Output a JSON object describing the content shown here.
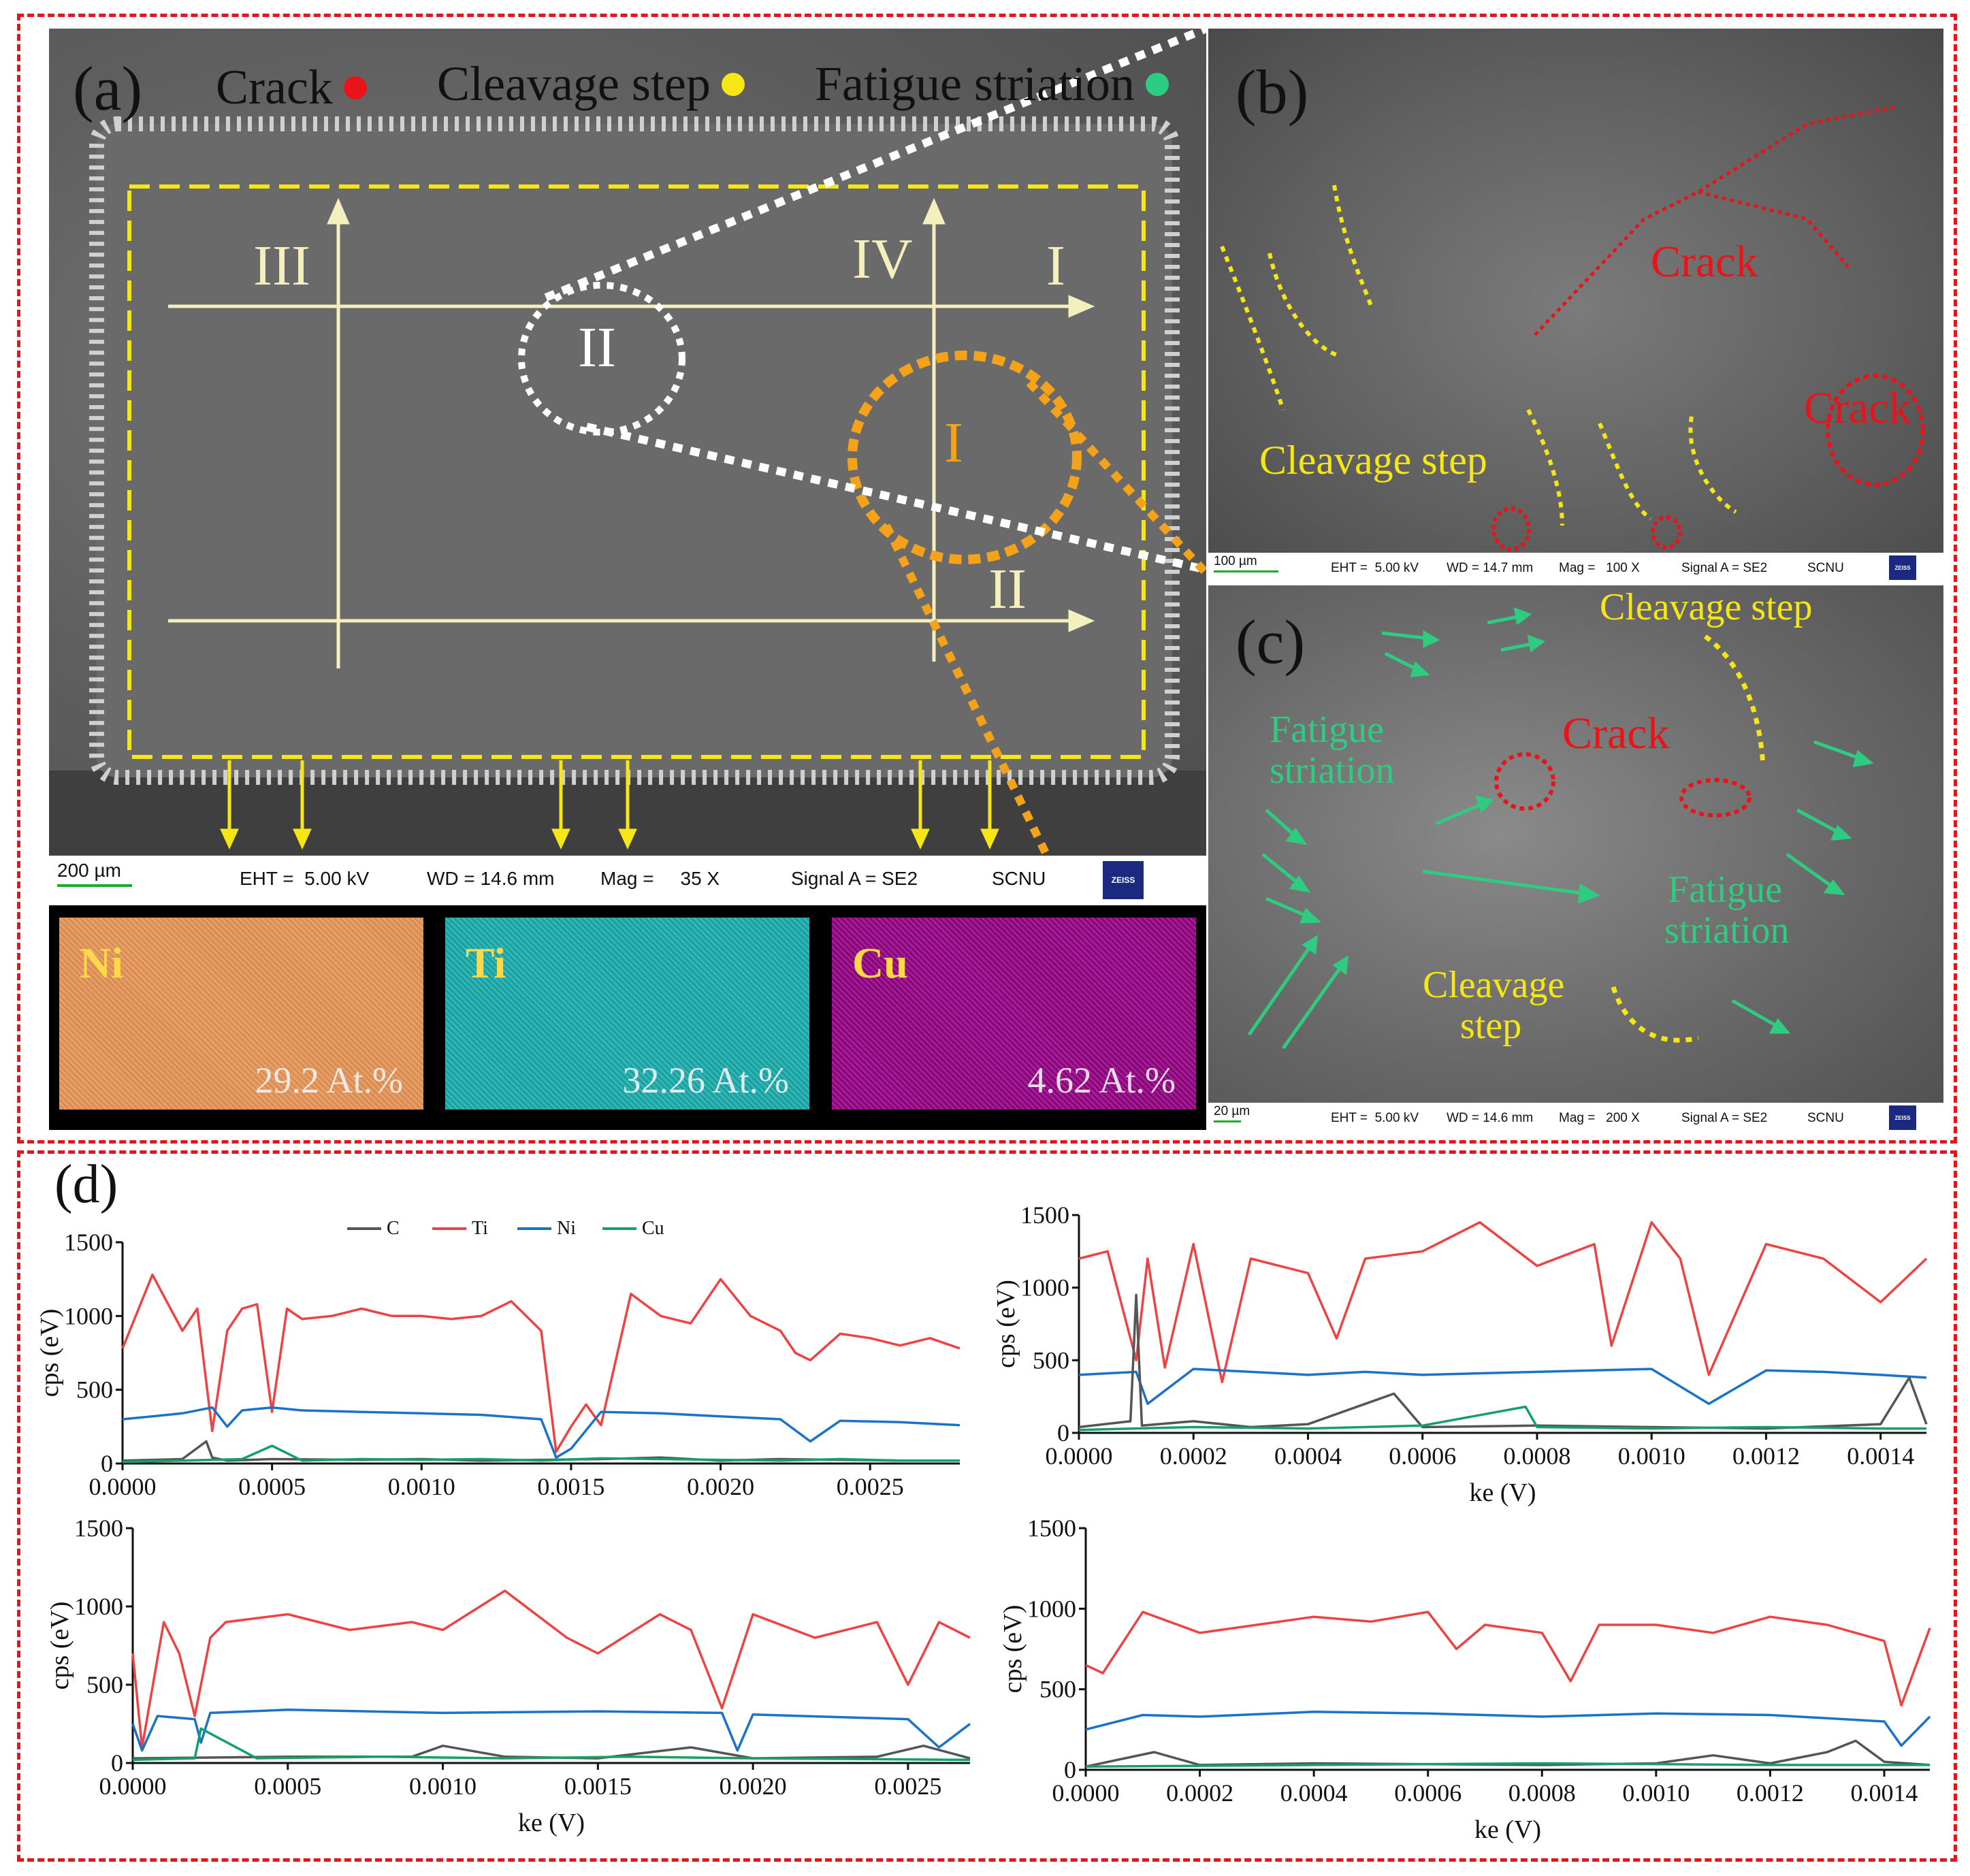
{
  "panel_a": {
    "letter": "(a)",
    "legend": [
      {
        "label": "Crack",
        "color": "#e8141a"
      },
      {
        "label": "Cleavage step",
        "color": "#f5e614"
      },
      {
        "label": "Fatigue striation",
        "color": "#2ecc80"
      }
    ],
    "region_labels": [
      "III",
      "IV",
      "I",
      "II",
      "II",
      "I"
    ],
    "scale_bar": "200 µm",
    "info": {
      "eht": "EHT =  5.00 kV",
      "wd": "WD = 14.6 mm",
      "mag": "Mag =     35 X",
      "signal": "Signal A = SE2",
      "lab": "SCNU",
      "brand": "ZEISS"
    },
    "eds_maps": [
      {
        "element": "Ni",
        "value": "29.2 At.%",
        "color": "#e8a066"
      },
      {
        "element": "Ti",
        "value": "32.26 At.%",
        "color": "#2fb8b8"
      },
      {
        "element": "Cu",
        "value": "4.62 At.%",
        "color": "#b0169e"
      }
    ]
  },
  "panel_b": {
    "letter": "(b)",
    "labels": {
      "crack1": "Crack",
      "crack2": "Crack",
      "cleavage": "Cleavage step"
    },
    "scale_bar": "100 µm",
    "info": {
      "eht": "EHT =  5.00 kV",
      "wd": "WD = 14.7 mm",
      "mag": "Mag =   100 X",
      "signal": "Signal A = SE2",
      "lab": "SCNU",
      "brand": "ZEISS"
    }
  },
  "panel_c": {
    "letter": "(c)",
    "labels": {
      "cleavage_top": "Cleavage step",
      "crack": "Crack",
      "fatigue_left_1": "Fatigue",
      "fatigue_left_2": "striation",
      "fatigue_right_1": "Fatigue",
      "fatigue_right_2": "striation",
      "cleavage_bottom_1": "Cleavage",
      "cleavage_bottom_2": "step"
    },
    "scale_bar": "20 µm",
    "info": {
      "eht": "EHT =  5.00 kV",
      "wd": "WD = 14.6 mm",
      "mag": "Mag =   200 X",
      "signal": "Signal A = SE2",
      "lab": "SCNU",
      "brand": "ZEISS"
    }
  },
  "panel_d": {
    "letter": "(d)"
  },
  "colors": {
    "frame": "#e0181c",
    "Ti": "#ee4343",
    "Ni": "#1a72c9",
    "C": "#555555",
    "Cu": "#16a067"
  },
  "chart_data": [
    {
      "type": "line",
      "xlabel": "",
      "ylabel": "cps (eV)",
      "xlim": [
        0,
        0.0028
      ],
      "ylim": [
        0,
        1500
      ],
      "xticks": [
        "0.0000",
        "0.0005",
        "0.0010",
        "0.0015",
        "0.0020",
        "0.0025"
      ],
      "xtick_values": [
        0,
        0.0005,
        0.001,
        0.0015,
        0.002,
        0.0025
      ],
      "yticks": [
        "0",
        "500",
        "1000",
        "1500"
      ],
      "ytick_values": [
        0,
        500,
        1000,
        1500
      ],
      "legend": [
        "C",
        "Ti",
        "Ni",
        "Cu"
      ],
      "series": [
        {
          "name": "Ti",
          "x": [
            0,
            0.0001,
            0.0002,
            0.00025,
            0.0003,
            0.00035,
            0.0004,
            0.00045,
            0.0005,
            0.00055,
            0.0006,
            0.0007,
            0.0008,
            0.0009,
            0.001,
            0.0011,
            0.0012,
            0.0013,
            0.0014,
            0.00145,
            0.0015,
            0.00155,
            0.0016,
            0.0017,
            0.0018,
            0.0019,
            0.002,
            0.0021,
            0.0022,
            0.00225,
            0.0023,
            0.0024,
            0.0025,
            0.0026,
            0.0027,
            0.0028
          ],
          "y": [
            780,
            1280,
            900,
            1050,
            220,
            900,
            1050,
            1080,
            350,
            1050,
            980,
            1000,
            1050,
            1000,
            1000,
            980,
            1000,
            1100,
            900,
            80,
            250,
            400,
            260,
            1150,
            1000,
            950,
            1250,
            1000,
            900,
            750,
            700,
            880,
            850,
            800,
            850,
            780
          ]
        },
        {
          "name": "Ni",
          "x": [
            0,
            0.0001,
            0.0002,
            0.0003,
            0.00035,
            0.0004,
            0.0005,
            0.0006,
            0.0008,
            0.001,
            0.0012,
            0.0014,
            0.00145,
            0.0015,
            0.0016,
            0.0018,
            0.002,
            0.0022,
            0.0023,
            0.0024,
            0.0026,
            0.0028
          ],
          "y": [
            300,
            320,
            340,
            380,
            250,
            360,
            380,
            360,
            350,
            340,
            330,
            300,
            40,
            100,
            350,
            340,
            320,
            300,
            150,
            290,
            280,
            260
          ]
        },
        {
          "name": "C",
          "x": [
            0,
            0.0002,
            0.00028,
            0.0003,
            0.00035,
            0.0005,
            0.0008,
            0.001,
            0.0012,
            0.0014,
            0.0016,
            0.0018,
            0.002,
            0.0022,
            0.0024,
            0.0026,
            0.0028
          ],
          "y": [
            20,
            30,
            150,
            40,
            20,
            30,
            25,
            30,
            20,
            25,
            30,
            40,
            20,
            30,
            25,
            20,
            20
          ]
        },
        {
          "name": "Cu",
          "x": [
            0,
            0.0002,
            0.0004,
            0.0005,
            0.0006,
            0.0008,
            0.001,
            0.0012,
            0.0014,
            0.0016,
            0.0018,
            0.002,
            0.0022,
            0.0024,
            0.0026,
            0.0028
          ],
          "y": [
            10,
            20,
            30,
            120,
            20,
            30,
            25,
            30,
            20,
            35,
            30,
            25,
            20,
            30,
            20,
            20
          ]
        }
      ]
    },
    {
      "type": "line",
      "xlabel": "ke (V)",
      "ylabel": "cps (eV)",
      "xlim": [
        0,
        0.00148
      ],
      "ylim": [
        0,
        1500
      ],
      "xticks": [
        "0.0000",
        "0.0002",
        "0.0004",
        "0.0006",
        "0.0008",
        "0.0010",
        "0.0012",
        "0.0014"
      ],
      "xtick_values": [
        0,
        0.0002,
        0.0004,
        0.0006,
        0.0008,
        0.001,
        0.0012,
        0.0014
      ],
      "yticks": [
        "0",
        "500",
        "1000",
        "1500"
      ],
      "ytick_values": [
        0,
        500,
        1000,
        1500
      ],
      "series": [
        {
          "name": "Ti",
          "x": [
            0,
            5e-05,
            0.0001,
            0.00012,
            0.00015,
            0.0002,
            0.00025,
            0.0003,
            0.0004,
            0.00045,
            0.0005,
            0.0006,
            0.0007,
            0.0008,
            0.0009,
            0.00093,
            0.001,
            0.00105,
            0.0011,
            0.0012,
            0.0013,
            0.0014,
            0.00148
          ],
          "y": [
            1200,
            1250,
            500,
            1200,
            450,
            1300,
            350,
            1200,
            1100,
            650,
            1200,
            1250,
            1450,
            1150,
            1300,
            600,
            1450,
            1200,
            400,
            1300,
            1200,
            900,
            1200
          ]
        },
        {
          "name": "Ni",
          "x": [
            0,
            0.0001,
            0.00012,
            0.0002,
            0.0003,
            0.0004,
            0.0005,
            0.0006,
            0.0008,
            0.001,
            0.0011,
            0.0012,
            0.0013,
            0.0014,
            0.00148
          ],
          "y": [
            400,
            420,
            200,
            440,
            420,
            400,
            420,
            400,
            420,
            440,
            200,
            430,
            420,
            400,
            380
          ]
        },
        {
          "name": "C",
          "x": [
            0,
            9e-05,
            0.0001,
            0.00011,
            0.0002,
            0.0003,
            0.0004,
            0.00055,
            0.0006,
            0.0008,
            0.001,
            0.0012,
            0.0014,
            0.00145,
            0.00148
          ],
          "y": [
            40,
            80,
            950,
            50,
            80,
            40,
            60,
            270,
            40,
            50,
            40,
            30,
            60,
            380,
            60
          ]
        },
        {
          "name": "Cu",
          "x": [
            0,
            0.0002,
            0.0004,
            0.0006,
            0.00078,
            0.0008,
            0.001,
            0.0012,
            0.0014,
            0.00148
          ],
          "y": [
            20,
            40,
            30,
            50,
            180,
            40,
            30,
            40,
            30,
            30
          ]
        }
      ]
    },
    {
      "type": "line",
      "xlabel": "ke (V)",
      "ylabel": "cps (eV)",
      "xlim": [
        0,
        0.0027
      ],
      "ylim": [
        0,
        1500
      ],
      "xticks": [
        "0.0000",
        "0.0005",
        "0.0010",
        "0.0015",
        "0.0020",
        "0.0025"
      ],
      "xtick_values": [
        0,
        0.0005,
        0.001,
        0.0015,
        0.002,
        0.0025
      ],
      "yticks": [
        "0",
        "500",
        "1000",
        "1500"
      ],
      "ytick_values": [
        0,
        500,
        1000,
        1500
      ],
      "series": [
        {
          "name": "Ti",
          "x": [
            0,
            3e-05,
            0.0001,
            0.00015,
            0.0002,
            0.00025,
            0.0003,
            0.0005,
            0.0007,
            0.0009,
            0.001,
            0.0012,
            0.0014,
            0.0015,
            0.0017,
            0.0018,
            0.0019,
            0.002,
            0.0022,
            0.0024,
            0.0025,
            0.0026,
            0.0027
          ],
          "y": [
            700,
            100,
            900,
            700,
            300,
            800,
            900,
            950,
            850,
            900,
            850,
            1100,
            800,
            700,
            950,
            850,
            350,
            950,
            800,
            900,
            500,
            900,
            800
          ]
        },
        {
          "name": "Ni",
          "x": [
            0,
            3e-05,
            8e-05,
            0.0002,
            0.00022,
            0.00025,
            0.0005,
            0.001,
            0.0015,
            0.0019,
            0.00195,
            0.002,
            0.0025,
            0.0026,
            0.0027
          ],
          "y": [
            250,
            80,
            300,
            280,
            130,
            320,
            340,
            320,
            330,
            320,
            80,
            310,
            280,
            100,
            250
          ]
        },
        {
          "name": "C",
          "x": [
            0,
            0.0005,
            0.0009,
            0.001,
            0.0012,
            0.0015,
            0.0018,
            0.002,
            0.0024,
            0.00255,
            0.0027
          ],
          "y": [
            30,
            40,
            40,
            110,
            40,
            30,
            100,
            30,
            40,
            110,
            30
          ]
        },
        {
          "name": "Cu",
          "x": [
            0,
            0.0002,
            0.00022,
            0.0004,
            0.0008,
            0.0012,
            0.0016,
            0.002,
            0.0027
          ],
          "y": [
            20,
            30,
            220,
            30,
            40,
            30,
            40,
            30,
            20
          ]
        }
      ]
    },
    {
      "type": "line",
      "xlabel": "ke (V)",
      "ylabel": "cps (eV)",
      "xlim": [
        0,
        0.00148
      ],
      "ylim": [
        0,
        1500
      ],
      "xticks": [
        "0.0000",
        "0.0002",
        "0.0004",
        "0.0006",
        "0.0008",
        "0.0010",
        "0.0012",
        "0.0014"
      ],
      "xtick_values": [
        0,
        0.0002,
        0.0004,
        0.0006,
        0.0008,
        0.001,
        0.0012,
        0.0014
      ],
      "yticks": [
        "0",
        "500",
        "1000",
        "1500"
      ],
      "ytick_values": [
        0,
        500,
        1000,
        1500
      ],
      "series": [
        {
          "name": "Ti",
          "x": [
            0,
            3e-05,
            0.0001,
            0.0002,
            0.0003,
            0.0004,
            0.0005,
            0.0006,
            0.00065,
            0.0007,
            0.0008,
            0.00085,
            0.0009,
            0.001,
            0.0011,
            0.0012,
            0.0013,
            0.0014,
            0.00143,
            0.00148
          ],
          "y": [
            650,
            600,
            980,
            850,
            900,
            950,
            920,
            980,
            750,
            900,
            850,
            550,
            900,
            900,
            850,
            950,
            900,
            800,
            400,
            880
          ]
        },
        {
          "name": "Ni",
          "x": [
            0,
            0.0001,
            0.0002,
            0.0004,
            0.0006,
            0.0008,
            0.001,
            0.0012,
            0.0014,
            0.00143,
            0.00148
          ],
          "y": [
            250,
            340,
            330,
            360,
            350,
            330,
            350,
            340,
            300,
            150,
            330
          ]
        },
        {
          "name": "C",
          "x": [
            0,
            0.00012,
            0.0002,
            0.0004,
            0.0008,
            0.001,
            0.0011,
            0.0012,
            0.0013,
            0.00135,
            0.0014,
            0.00148
          ],
          "y": [
            20,
            110,
            30,
            40,
            30,
            40,
            90,
            40,
            110,
            180,
            50,
            30
          ]
        },
        {
          "name": "Cu",
          "x": [
            0,
            0.0004,
            0.0008,
            0.0012,
            0.00148
          ],
          "y": [
            20,
            30,
            40,
            30,
            30
          ]
        }
      ]
    }
  ]
}
